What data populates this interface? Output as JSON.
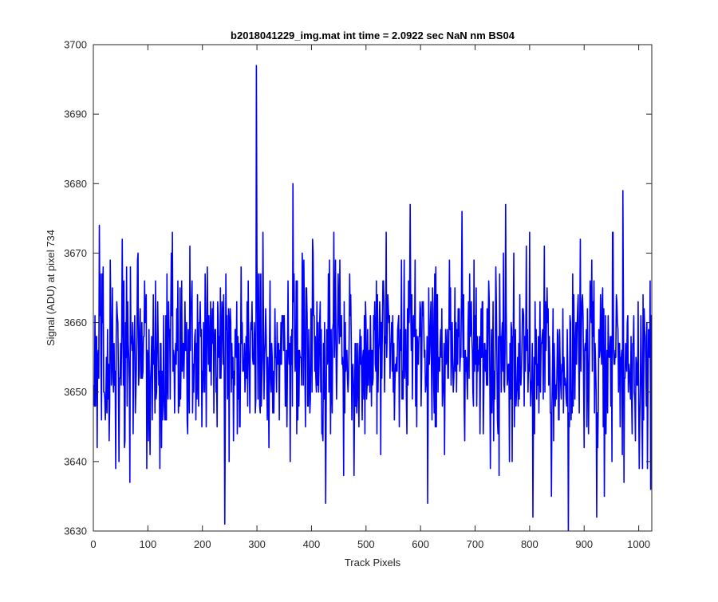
{
  "chart_data": {
    "type": "line",
    "title": "b2018041229_img.mat int time = 2.0922 sec  NaN nm BS04",
    "xlabel": "Track Pixels",
    "ylabel": "Signal (ADU) at pixel 734",
    "xlim": [
      0,
      1024
    ],
    "ylim": [
      3630,
      3700
    ],
    "xticks": [
      0,
      100,
      200,
      300,
      400,
      500,
      600,
      700,
      800,
      900,
      1000
    ],
    "yticks": [
      3630,
      3640,
      3650,
      3660,
      3670,
      3680,
      3690,
      3700
    ],
    "grid": false,
    "line_color": "#0000ff",
    "n_points": 1024,
    "baseline": 3655,
    "noise_range": [
      3630,
      3697
    ],
    "notable_points": [
      {
        "x": 10,
        "y": 3674
      },
      {
        "x": 240,
        "y": 3631
      },
      {
        "x": 298,
        "y": 3697
      },
      {
        "x": 365,
        "y": 3680
      },
      {
        "x": 425,
        "y": 3634
      },
      {
        "x": 580,
        "y": 3677
      },
      {
        "x": 612,
        "y": 3634
      },
      {
        "x": 675,
        "y": 3676
      },
      {
        "x": 755,
        "y": 3677
      },
      {
        "x": 805,
        "y": 3632
      },
      {
        "x": 870,
        "y": 3630
      },
      {
        "x": 922,
        "y": 3632
      },
      {
        "x": 970,
        "y": 3679
      },
      {
        "x": 1015,
        "y": 3639
      }
    ]
  }
}
